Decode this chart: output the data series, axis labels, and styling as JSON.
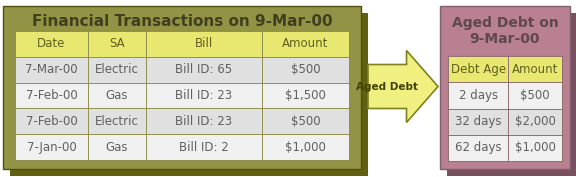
{
  "title_left": "Financial Transactions on 9-Mar-00",
  "title_right": "Aged Debt on\n9-Mar-00",
  "arrow_label": "Aged Debt",
  "left_bg": "#939345",
  "left_bevel_top": "#B8B860",
  "left_bevel_right": "#707020",
  "left_inner_bg": "#E8E870",
  "left_header_bg": "#E8E870",
  "left_row_bg_odd": "#E0E0E0",
  "left_row_bg_even": "#F0F0F0",
  "right_bg": "#B88090",
  "right_bevel_top": "#D0A0B0",
  "right_bevel_right": "#906070",
  "right_inner_bg": "#C0A0A8",
  "right_header_bg": "#E8E870",
  "right_row_bg_odd": "#F0F0F0",
  "right_row_bg_even": "#E0E0E0",
  "arrow_color": "#F0F080",
  "arrow_edge": "#808020",
  "left_headers": [
    "Date",
    "SA",
    "Bill",
    "Amount"
  ],
  "left_rows": [
    [
      "7-Mar-00",
      "Electric",
      "Bill ID: 65",
      "$500"
    ],
    [
      "7-Feb-00",
      "Gas",
      "Bill ID: 23",
      "$1,500"
    ],
    [
      "7-Feb-00",
      "Electric",
      "Bill ID: 23",
      "$500"
    ],
    [
      "7-Jan-00",
      "Gas",
      "Bill ID: 2",
      "$1,000"
    ]
  ],
  "right_headers": [
    "Debt Age",
    "Amount"
  ],
  "right_rows": [
    [
      "2 days",
      "$500"
    ],
    [
      "32 days",
      "$2,000"
    ],
    [
      "62 days",
      "$1,000"
    ]
  ],
  "title_left_color": "#404020",
  "header_text_color": "#606020",
  "cell_text_color": "#606060",
  "title_right_color": "#604850",
  "fig_w": 5.76,
  "fig_h": 1.77,
  "dpi": 100
}
